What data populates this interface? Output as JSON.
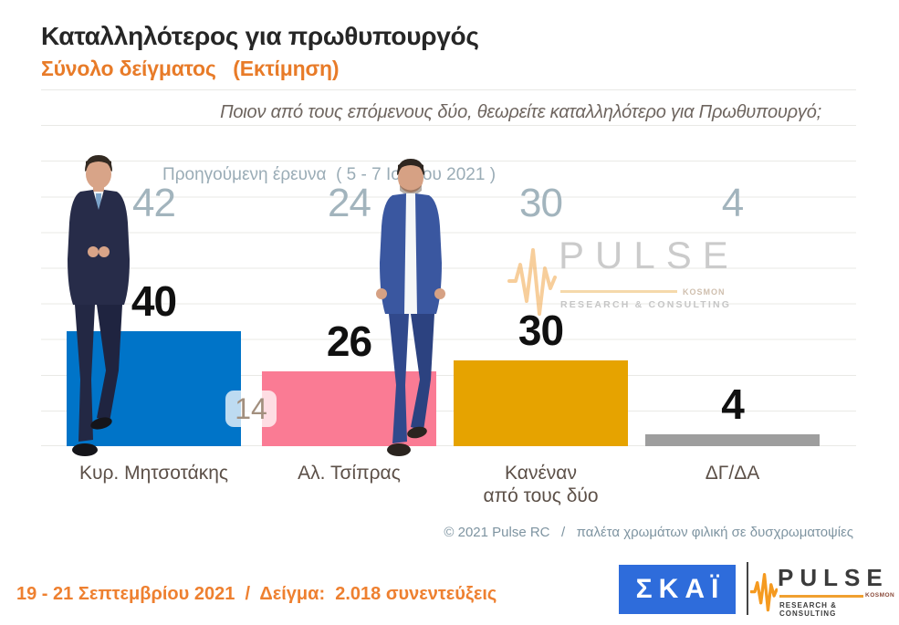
{
  "header": {
    "title": "Καταλληλότερος για πρωθυπουργός",
    "subtitle": "Σύνολο δείγματος   (Εκτίμηση)"
  },
  "question": "Ποιον από τους επόμενους δύο, θεωρείτε καταλληλότερο για Πρωθυπουργό;",
  "previous_survey_label": "Προηγούμενη έρευνα  ( 5 - 7 Ιουλίου 2021 )",
  "chart_data": {
    "type": "bar",
    "title": "Καταλληλότερος για πρωθυπουργός",
    "subtitle": "Σύνολο δείγματος (Εκτίμηση)",
    "categories": [
      "Κυρ. Μητσοτάκης",
      "Αλ. Τσίπρας",
      "Κανέναν από τους δύο",
      "ΔΓ/ΔΑ"
    ],
    "category_labels_display": [
      "Κυρ. Μητσοτάκης",
      "Αλ. Τσίπρας",
      "Κανέναν\nαπό τους δύο",
      "ΔΓ/ΔΑ"
    ],
    "series": [
      {
        "name": "Εκτίμηση (19 - 21 Σεπτεμβρίου 2021)",
        "values": [
          40,
          26,
          30,
          4
        ]
      },
      {
        "name": "Προηγούμενη έρευνα ( 5 - 7 Ιουλίου 2021 )",
        "values": [
          42,
          24,
          30,
          4
        ]
      }
    ],
    "bar_colors": [
      "#0074c8",
      "#fa7b94",
      "#e6a300",
      "#9e9e9e"
    ],
    "lead_annotation": "14",
    "ylim": [
      0,
      125
    ],
    "grid": true,
    "legend": false
  },
  "watermark": {
    "brand": "PULSE",
    "smallprint": "KOSMON",
    "tagline": "RESEARCH & CONSULTING"
  },
  "footnote": "© 2021 Pulse RC   /   παλέτα χρωμάτων φιλική σε δυσχρωματοψίες",
  "footer": {
    "fieldwork": "19 - 21 Σεπτεμβρίου 2021  /  Δείγμα:  2.018 συνεντεύξεις",
    "skai_logo_text": "ΣΚΑΪ",
    "pulse_logo": {
      "brand": "PULSE",
      "smallprint": "KOSMON",
      "tagline": "RESEARCH & CONSULTING"
    }
  },
  "colors": {
    "bar_blue": "#0074c8",
    "bar_pink": "#fa7b94",
    "bar_amber": "#e6a300",
    "bar_gray": "#9e9e9e",
    "accent_orange": "#ee8030",
    "muted_blue_gray": "#a2b4bd",
    "skai_blue": "#2e6cdb"
  }
}
